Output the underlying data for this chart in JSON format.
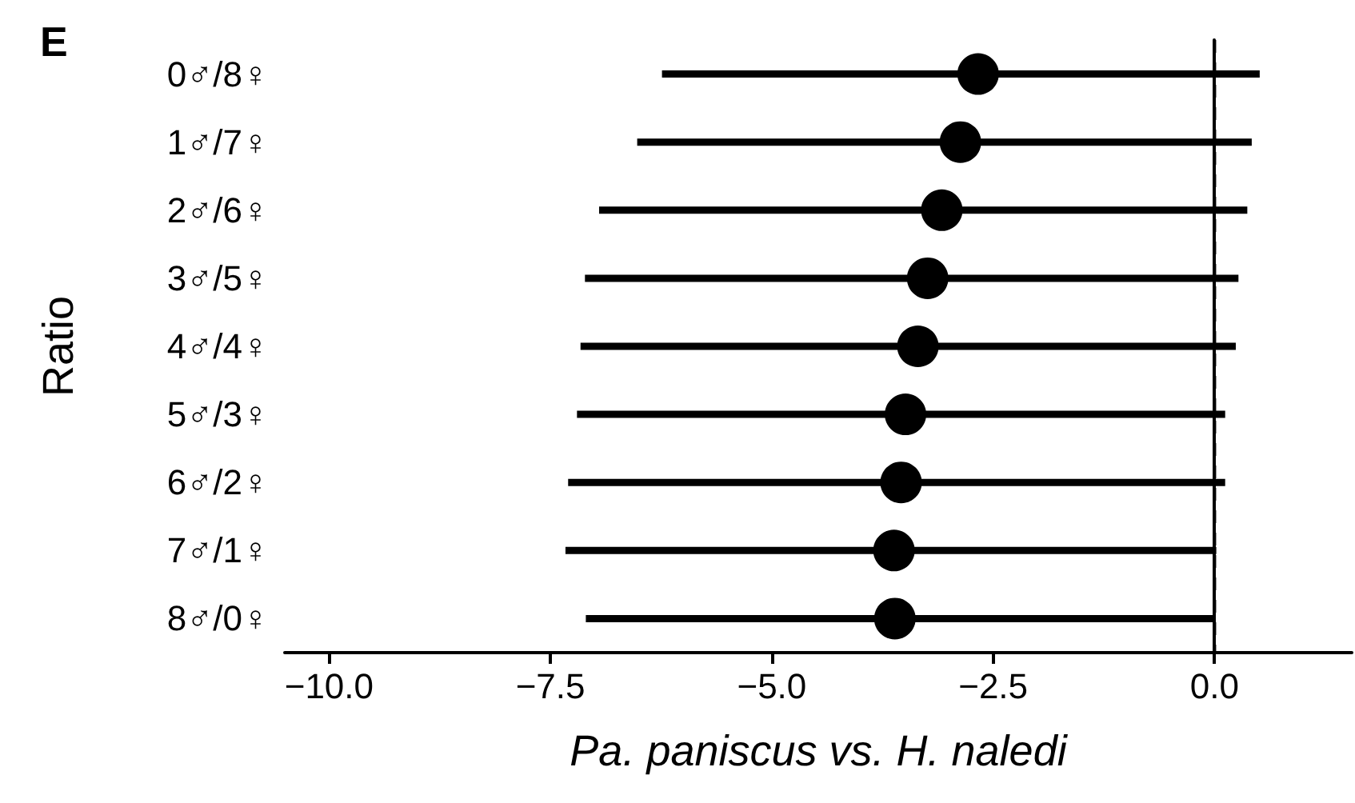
{
  "chart_data": {
    "type": "scatter",
    "orientation": "horizontal",
    "title": "E",
    "ylabel": "Ratio",
    "xlabel": "Pa. paniscus vs. H. naledi",
    "categories": [
      "0♂/8♀",
      "1♂/7♀",
      "2♂/6♀",
      "3♂/5♀",
      "4♂/4♀",
      "5♂/3♀",
      "6♂/2♀",
      "7♂/1♀",
      "8♂/0♀"
    ],
    "color": "#000000",
    "values": [
      -2.67,
      -2.87,
      -3.08,
      -3.24,
      -3.35,
      -3.49,
      -3.54,
      -3.62,
      -3.61
    ],
    "errors": [
      [
        -6.24,
        0.51
      ],
      [
        -6.52,
        0.42
      ],
      [
        -6.95,
        0.37
      ],
      [
        -7.11,
        0.27
      ],
      [
        -7.16,
        0.24
      ],
      [
        -7.2,
        0.12
      ],
      [
        -7.3,
        0.12
      ],
      [
        -7.33,
        0.02
      ],
      [
        -7.1,
        0.01
      ]
    ],
    "xlim": [
      -10.5,
      1.55
    ],
    "xticks": [
      {
        "value": -10,
        "label": "−10.0"
      },
      {
        "value": -7.5,
        "label": "−7.5"
      },
      {
        "value": -5,
        "label": "−5.0"
      },
      {
        "value": -2.5,
        "label": "−2.5"
      },
      {
        "value": 0,
        "label": "0.0"
      }
    ],
    "ref_lines": [
      {
        "axis": "x",
        "value": 0,
        "line_style": "dashed",
        "color": "#000000"
      }
    ],
    "marker": "circle",
    "grid": false,
    "legend": false
  }
}
